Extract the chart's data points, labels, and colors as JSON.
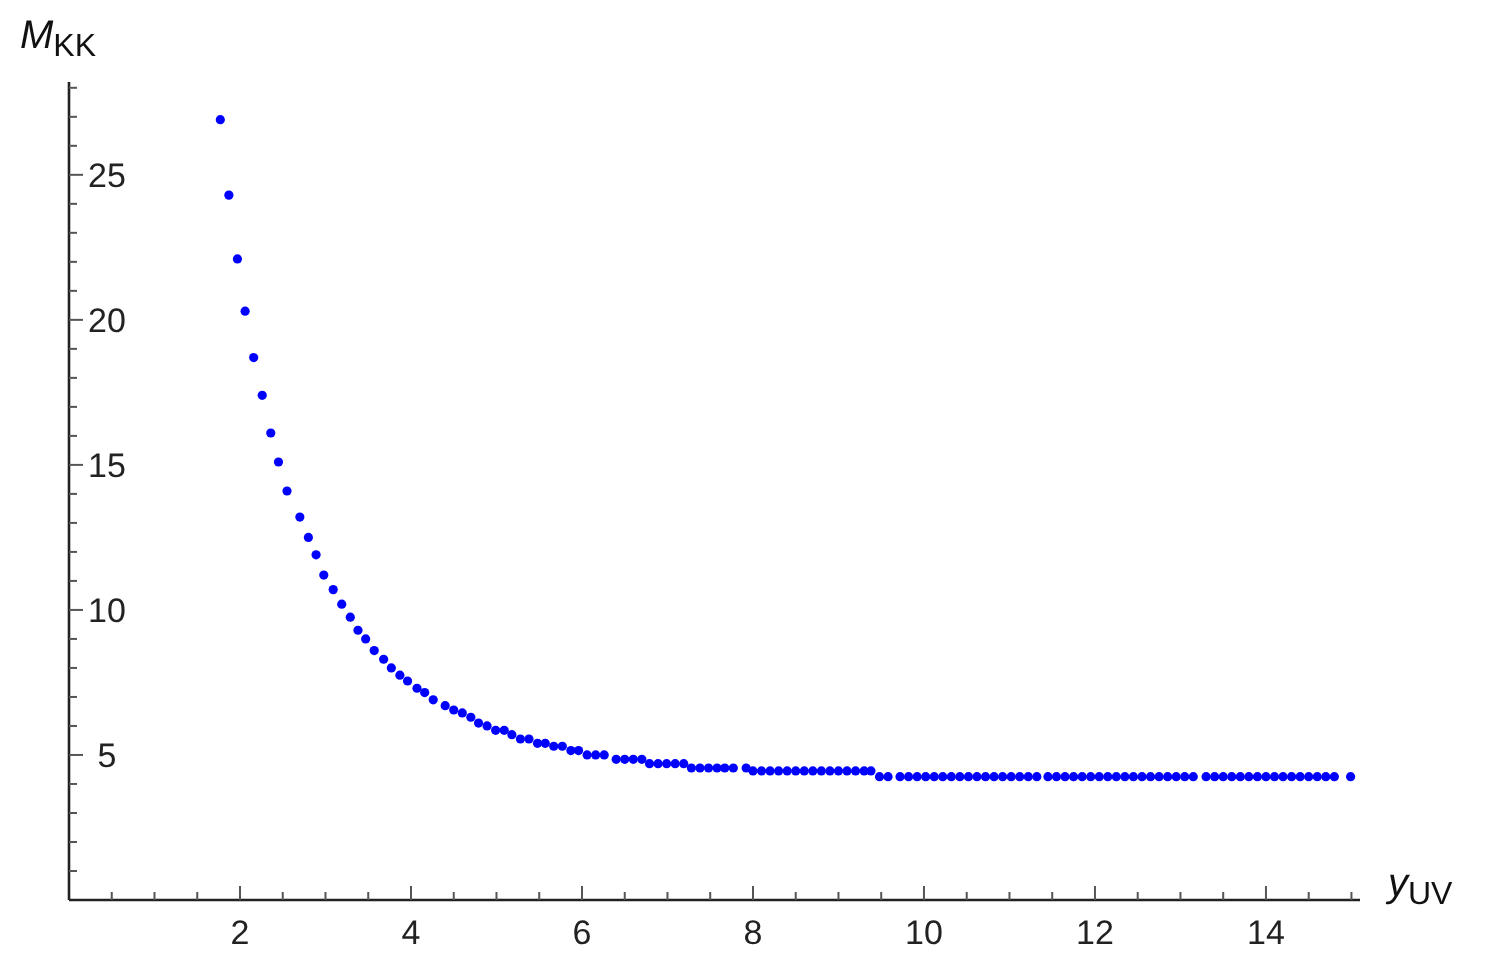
{
  "chart_data": {
    "type": "scatter",
    "xlabel": "y$_{UV}$",
    "ylabel": "M$_{KK}$",
    "xlim": [
      0,
      15.1
    ],
    "ylim": [
      0,
      28.2
    ],
    "xticks": [
      {
        "value": 0.5,
        "label": null
      },
      {
        "value": 1,
        "label": null
      },
      {
        "value": 1.5,
        "label": null
      },
      2,
      {
        "value": 2.5,
        "label": null
      },
      {
        "value": 3,
        "label": null
      },
      {
        "value": 3.5,
        "label": null
      },
      4,
      {
        "value": 4.5,
        "label": null
      },
      {
        "value": 5,
        "label": null
      },
      {
        "value": 5.5,
        "label": null
      },
      6,
      {
        "value": 6.5,
        "label": null
      },
      {
        "value": 7,
        "label": null
      },
      {
        "value": 7.5,
        "label": null
      },
      8,
      {
        "value": 8.5,
        "label": null
      },
      {
        "value": 9,
        "label": null
      },
      {
        "value": 9.5,
        "label": null
      },
      10,
      {
        "value": 10.5,
        "label": null
      },
      {
        "value": 11,
        "label": null
      },
      {
        "value": 11.5,
        "label": null
      },
      12,
      {
        "value": 12.5,
        "label": null
      },
      {
        "value": 13,
        "label": null
      },
      {
        "value": 13.5,
        "label": null
      },
      14,
      {
        "value": 14.5,
        "label": null
      },
      {
        "value": 15,
        "label": null
      }
    ],
    "yticks": [
      {
        "value": 1,
        "label": null
      },
      {
        "value": 2,
        "label": null
      },
      {
        "value": 3,
        "label": null
      },
      {
        "value": 4,
        "label": null
      },
      5,
      {
        "value": 6,
        "label": null
      },
      {
        "value": 7,
        "label": null
      },
      {
        "value": 8,
        "label": null
      },
      {
        "value": 9,
        "label": null
      },
      10,
      {
        "value": 11,
        "label": null
      },
      {
        "value": 12,
        "label": null
      },
      {
        "value": 13,
        "label": null
      },
      {
        "value": 14,
        "label": null
      },
      15,
      {
        "value": 16,
        "label": null
      },
      {
        "value": 17,
        "label": null
      },
      {
        "value": 18,
        "label": null
      },
      {
        "value": 19,
        "label": null
      },
      20,
      {
        "value": 21,
        "label": null
      },
      {
        "value": 22,
        "label": null
      },
      {
        "value": 23,
        "label": null
      },
      {
        "value": 24,
        "label": null
      },
      25,
      {
        "value": 26,
        "label": null
      },
      {
        "value": 27,
        "label": null
      },
      {
        "value": 28,
        "label": null
      }
    ],
    "grid": false,
    "marker": "circle",
    "series": [
      {
        "color": "#0000ff",
        "x": [
          1.77,
          1.87,
          1.97,
          2.06,
          2.16,
          2.26,
          2.36,
          2.45,
          2.55,
          2.7,
          2.8,
          2.89,
          2.98,
          3.09,
          3.19,
          3.29,
          3.38,
          3.47,
          3.57,
          3.68,
          3.77,
          3.87,
          3.96,
          4.07,
          4.16,
          4.26,
          4.4,
          4.5,
          4.6,
          4.7,
          4.79,
          4.89,
          4.99,
          5.09,
          5.18,
          5.28,
          5.38,
          5.48,
          5.57,
          5.67,
          5.77,
          5.87,
          5.96,
          6.06,
          6.16,
          6.26,
          6.4,
          6.5,
          6.6,
          6.7,
          6.79,
          6.89,
          6.99,
          7.09,
          7.19,
          7.28,
          7.38,
          7.48,
          7.58,
          7.67,
          7.77,
          7.92,
          8.0,
          8.1,
          8.2,
          8.3,
          8.4,
          8.5,
          8.6,
          8.7,
          8.8,
          8.9,
          9.0,
          9.1,
          9.2,
          9.3,
          9.38,
          9.48,
          9.58,
          9.72,
          9.82,
          9.92,
          10.02,
          10.12,
          10.22,
          10.32,
          10.42,
          10.52,
          10.62,
          10.72,
          10.82,
          10.92,
          11.02,
          11.12,
          11.22,
          11.32,
          11.45,
          11.55,
          11.65,
          11.75,
          11.85,
          11.95,
          12.05,
          12.15,
          12.25,
          12.35,
          12.45,
          12.55,
          12.65,
          12.75,
          12.85,
          12.95,
          13.05,
          13.15,
          13.3,
          13.4,
          13.5,
          13.6,
          13.7,
          13.8,
          13.9,
          14.0,
          14.1,
          14.2,
          14.3,
          14.4,
          14.5,
          14.6,
          14.7,
          14.8,
          14.99
        ],
        "values": [
          26.9,
          24.3,
          22.1,
          20.3,
          18.7,
          17.4,
          16.1,
          15.1,
          14.1,
          13.2,
          12.5,
          11.9,
          11.2,
          10.7,
          10.2,
          9.75,
          9.3,
          9.0,
          8.6,
          8.3,
          8.0,
          7.75,
          7.55,
          7.3,
          7.15,
          6.9,
          6.7,
          6.55,
          6.45,
          6.3,
          6.1,
          6.0,
          5.85,
          5.85,
          5.7,
          5.55,
          5.55,
          5.4,
          5.4,
          5.3,
          5.3,
          5.15,
          5.15,
          5.0,
          5.0,
          5.0,
          4.85,
          4.85,
          4.85,
          4.85,
          4.7,
          4.7,
          4.7,
          4.7,
          4.7,
          4.55,
          4.55,
          4.55,
          4.55,
          4.55,
          4.55,
          4.55,
          4.45,
          4.45,
          4.45,
          4.45,
          4.45,
          4.45,
          4.45,
          4.45,
          4.45,
          4.45,
          4.45,
          4.45,
          4.45,
          4.45,
          4.45,
          4.25,
          4.25,
          4.25,
          4.25,
          4.25,
          4.25,
          4.25,
          4.25,
          4.25,
          4.25,
          4.25,
          4.25,
          4.25,
          4.25,
          4.25,
          4.25,
          4.25,
          4.25,
          4.25,
          4.25,
          4.25,
          4.25,
          4.25,
          4.25,
          4.25,
          4.25,
          4.25,
          4.25,
          4.25,
          4.25,
          4.25,
          4.25,
          4.25,
          4.25,
          4.25,
          4.25,
          4.25,
          4.25,
          4.25,
          4.25,
          4.25,
          4.25,
          4.25,
          4.25,
          4.25,
          4.25,
          4.25,
          4.25,
          4.25,
          4.25,
          4.25,
          4.25,
          4.25,
          4.25
        ]
      }
    ]
  }
}
